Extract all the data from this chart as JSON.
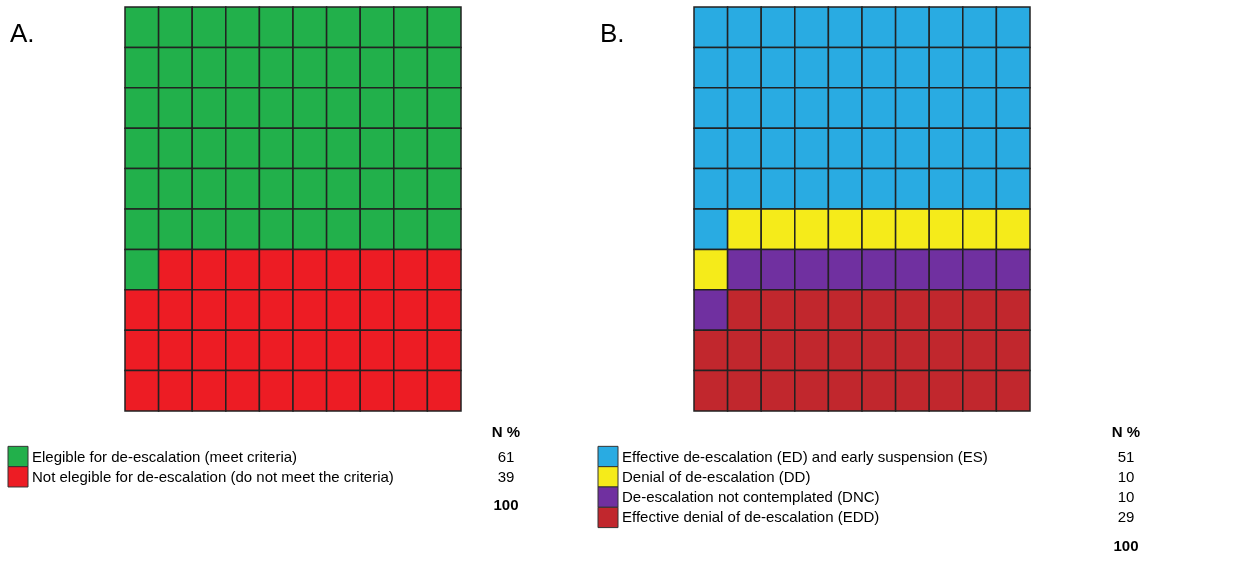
{
  "chart_data": [
    {
      "type": "other",
      "title": "A.",
      "legend_title": "N %",
      "categories": [
        "Elegible for de-escalation (meet criteria)",
        "Not elegible for de-escalation (do not meet the criteria)"
      ],
      "values": [
        61,
        39
      ],
      "colors": [
        "#22b04b",
        "#ed1c24"
      ],
      "data_labels": true,
      "annotations": [
        "100"
      ]
    },
    {
      "type": "other",
      "title": "B.",
      "legend_title": "N %",
      "categories": [
        "Effective de-escalation (ED) and early suspension (ES)",
        "Denial of de-escalation (DD)",
        "De-escalation not contemplated (DNC)",
        "Effective denial of de-escalation (EDD)"
      ],
      "values": [
        51,
        10,
        10,
        29
      ],
      "colors": [
        "#29abe2",
        "#f5eb1a",
        "#7030a0",
        "#c1272d"
      ],
      "data_labels": true,
      "annotations": [
        "100"
      ]
    }
  ]
}
